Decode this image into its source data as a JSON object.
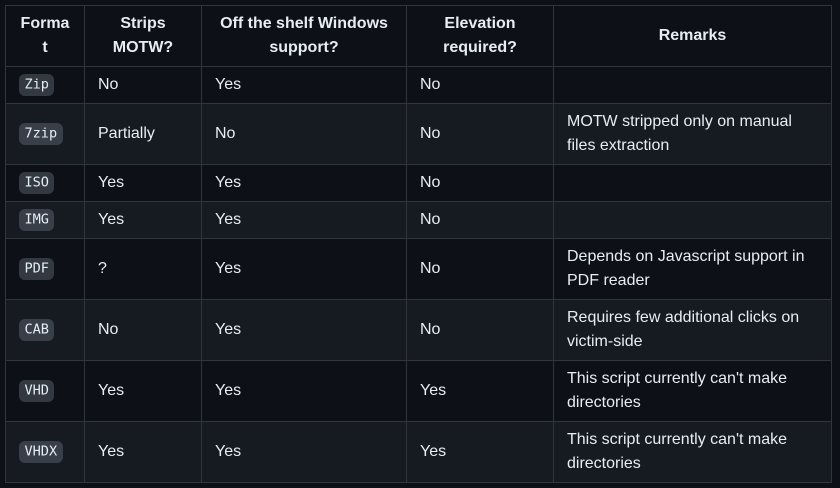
{
  "theme": {
    "page_background": "#0d1117",
    "row_alt_background": "#161b22",
    "border_color": "#30363d",
    "text_color": "#e6edf3",
    "code_badge_background": "rgba(110,118,129,0.4)"
  },
  "table": {
    "columns": [
      "Format",
      "Strips MOTW?",
      "Off the shelf Windows support?",
      "Elevation required?",
      "Remarks"
    ],
    "rows": [
      {
        "format": "Zip",
        "strips_motw": "No",
        "windows_support": "Yes",
        "elevation_required": "No",
        "remarks": ""
      },
      {
        "format": "7zip",
        "strips_motw": "Partially",
        "windows_support": "No",
        "elevation_required": "No",
        "remarks": "MOTW stripped only on manual files extraction"
      },
      {
        "format": "ISO",
        "strips_motw": "Yes",
        "windows_support": "Yes",
        "elevation_required": "No",
        "remarks": ""
      },
      {
        "format": "IMG",
        "strips_motw": "Yes",
        "windows_support": "Yes",
        "elevation_required": "No",
        "remarks": ""
      },
      {
        "format": "PDF",
        "strips_motw": "?",
        "windows_support": "Yes",
        "elevation_required": "No",
        "remarks": "Depends on Javascript support in PDF reader"
      },
      {
        "format": "CAB",
        "strips_motw": "No",
        "windows_support": "Yes",
        "elevation_required": "No",
        "remarks": "Requires few additional clicks on victim-side"
      },
      {
        "format": "VHD",
        "strips_motw": "Yes",
        "windows_support": "Yes",
        "elevation_required": "Yes",
        "remarks": "This script currently can't make directories"
      },
      {
        "format": "VHDX",
        "strips_motw": "Yes",
        "windows_support": "Yes",
        "elevation_required": "Yes",
        "remarks": "This script currently can't make directories"
      }
    ]
  }
}
